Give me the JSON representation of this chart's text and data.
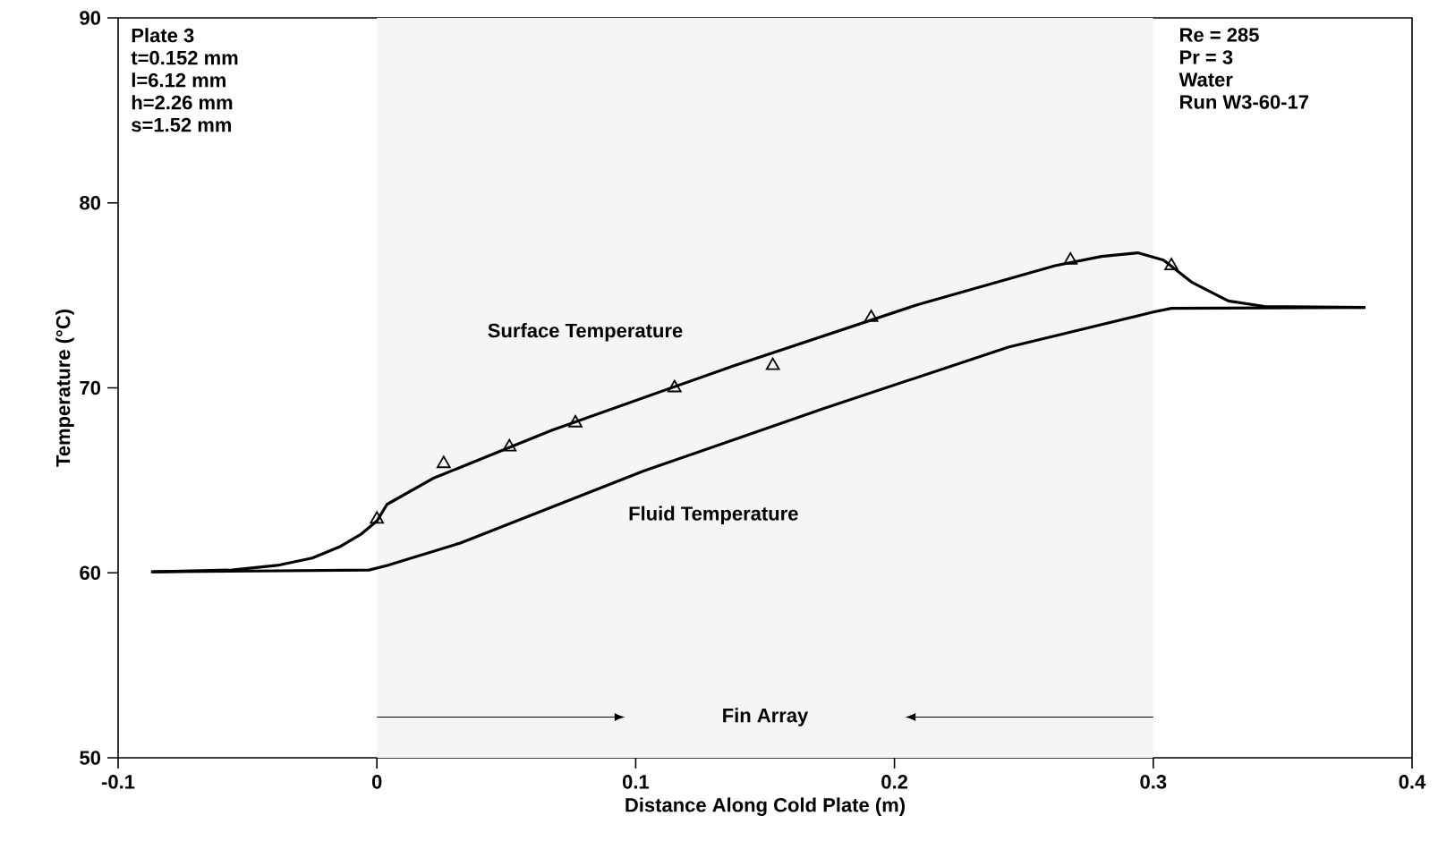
{
  "chart_data": {
    "type": "line",
    "xlabel": "Distance Along Cold Plate (m)",
    "ylabel": "Temperature (°C)",
    "xlim": [
      -0.1,
      0.4
    ],
    "ylim": [
      50,
      90
    ],
    "xticks": [
      -0.1,
      0,
      0.1,
      0.2,
      0.3,
      0.4
    ],
    "yticks": [
      50,
      60,
      70,
      80,
      90
    ],
    "grid": false,
    "marker": "none",
    "line_style": "solid",
    "series": [
      {
        "name": "Surface Temperature",
        "color": "#000000",
        "x": [
          -0.0866,
          -0.056,
          -0.0385,
          -0.025,
          -0.0145,
          -0.006,
          0.0,
          0.0039,
          0.0216,
          0.0675,
          0.138,
          0.209,
          0.262,
          0.28,
          0.294,
          0.304,
          0.315,
          0.329,
          0.343,
          0.382
        ],
        "values": [
          60.05,
          60.15,
          60.4,
          60.8,
          61.4,
          62.1,
          62.8,
          63.7,
          65.1,
          67.7,
          71.2,
          74.5,
          76.6,
          77.1,
          77.3,
          76.9,
          75.7,
          74.7,
          74.4,
          74.35
        ]
      },
      {
        "name": "Fluid Temperature",
        "color": "#000000",
        "x": [
          -0.0873,
          -0.003,
          0.004,
          0.032,
          0.103,
          0.173,
          0.244,
          0.3,
          0.307,
          0.3812
        ],
        "values": [
          60.05,
          60.15,
          60.4,
          61.6,
          65.5,
          68.9,
          72.2,
          74.1,
          74.3,
          74.35
        ]
      },
      {
        "type": "scatter",
        "marker": "triangle",
        "color": "#000000",
        "x": [
          0,
          0.0258,
          0.0512,
          0.0767,
          0.115,
          0.153,
          0.191,
          0.268,
          0.307
        ],
        "values": [
          62.9,
          65.9,
          66.8,
          68.1,
          70.0,
          71.2,
          73.8,
          76.9,
          76.6
        ]
      }
    ],
    "bands": [
      {
        "axis": "x",
        "from": 0,
        "to": 0.3,
        "label": "Fin Array",
        "color": "#f5f5f5"
      }
    ],
    "annotations": [
      "Plate 3",
      "t=0.152 mm",
      "l=6.12  mm",
      "h=2.26  mm",
      "s=1.52  mm",
      "Re = 285",
      "Pr = 3",
      "Water",
      "Run W3-60-17"
    ]
  }
}
